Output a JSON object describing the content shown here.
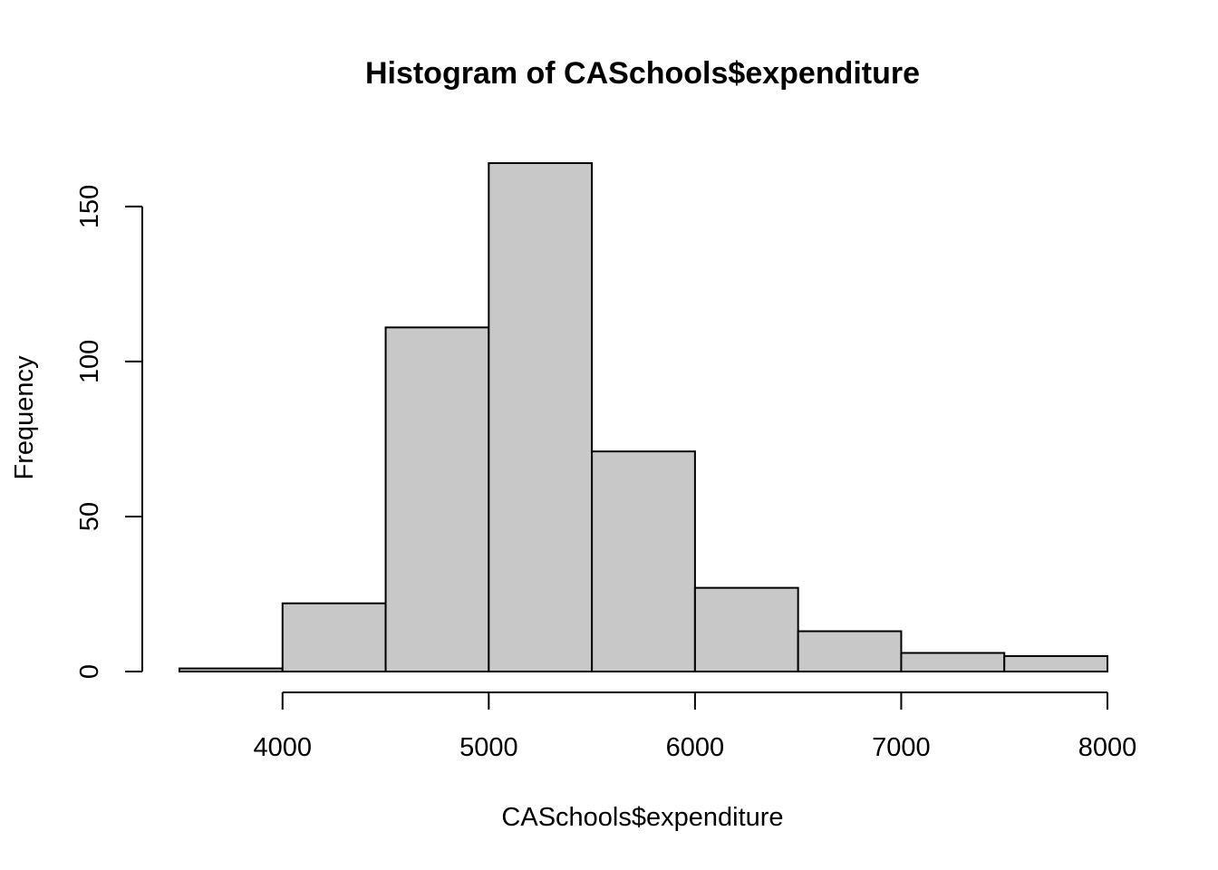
{
  "chart_data": {
    "type": "bar",
    "title": "Histogram of CASchools$expenditure",
    "xlabel": "CASchools$expenditure",
    "ylabel": "Frequency",
    "bins": [
      {
        "from": 3500,
        "to": 4000,
        "count": 1
      },
      {
        "from": 4000,
        "to": 4500,
        "count": 22
      },
      {
        "from": 4500,
        "to": 5000,
        "count": 111
      },
      {
        "from": 5000,
        "to": 5500,
        "count": 164
      },
      {
        "from": 5500,
        "to": 6000,
        "count": 71
      },
      {
        "from": 6000,
        "to": 6500,
        "count": 27
      },
      {
        "from": 6500,
        "to": 7000,
        "count": 13
      },
      {
        "from": 7000,
        "to": 7500,
        "count": 6
      },
      {
        "from": 7500,
        "to": 8000,
        "count": 5
      }
    ],
    "x_ticks": [
      4000,
      5000,
      6000,
      7000,
      8000
    ],
    "x_tick_labels": [
      "4000",
      "5000",
      "6000",
      "7000",
      "8000"
    ],
    "y_ticks": [
      0,
      50,
      100,
      150
    ],
    "y_tick_labels": [
      "0",
      "50",
      "100",
      "150"
    ],
    "xlim": [
      3500,
      8000
    ],
    "ylim": [
      0,
      164
    ],
    "bar_color": "#c8c8c8",
    "grid": false
  }
}
